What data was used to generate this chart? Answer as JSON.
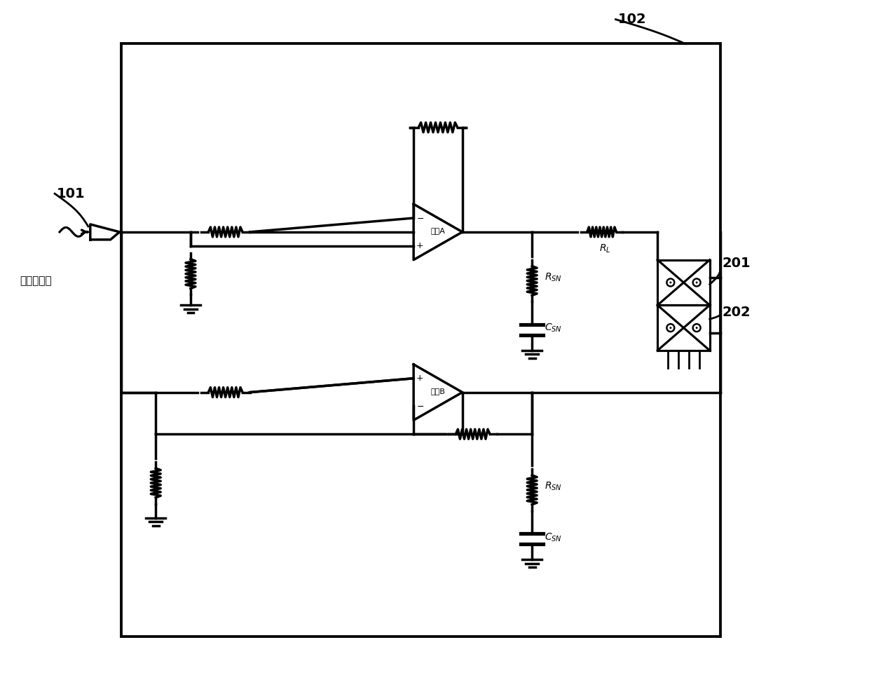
{
  "bg_color": "#ffffff",
  "line_color": "#000000",
  "line_width": 2.5,
  "fig_width": 12.4,
  "fig_height": 9.8,
  "label_101": "101",
  "label_102": "102",
  "label_201": "201",
  "label_202": "202",
  "label_func_gen": "函数发生器",
  "label_opA": "运放A",
  "label_opB": "运放B",
  "label_RL": "R_L",
  "label_RSN": "R_SN",
  "label_CSN": "C_SN"
}
